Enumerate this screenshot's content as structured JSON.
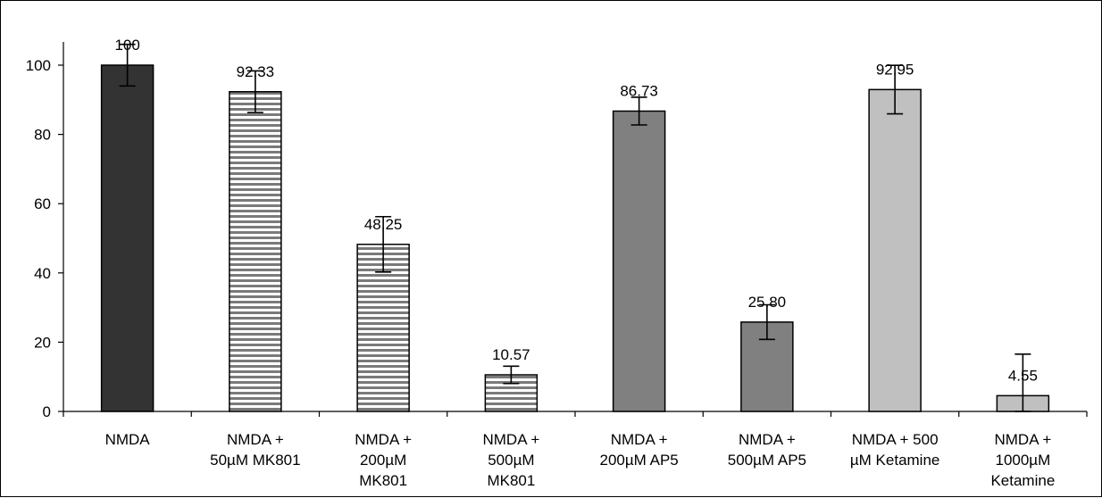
{
  "chart_data": {
    "type": "bar",
    "categories": [
      [
        "NMDA"
      ],
      [
        "NMDA +",
        "50µM MK801"
      ],
      [
        "NMDA +",
        "200µM",
        "MK801"
      ],
      [
        "NMDA +",
        "500µM",
        "MK801"
      ],
      [
        "NMDA +",
        "200µM AP5"
      ],
      [
        "NMDA +",
        "500µM AP5"
      ],
      [
        "NMDA + 500",
        "µM Ketamine"
      ],
      [
        "NMDA +",
        "1000µM",
        "Ketamine"
      ]
    ],
    "values": [
      100,
      92.33,
      48.25,
      10.57,
      86.73,
      25.8,
      92.95,
      4.55
    ],
    "data_labels": [
      "100",
      "92.33",
      "48.25",
      "10.57",
      "86.73",
      "25.80",
      "92.95",
      "4.55"
    ],
    "error": [
      6,
      6,
      8,
      2.5,
      4,
      5,
      7,
      12
    ],
    "colors": [
      "#333333",
      "#7f7f7f",
      "#7f7f7f",
      "#7f7f7f",
      "#808080",
      "#808080",
      "#c0c0c0",
      "#c0c0c0"
    ],
    "patterns": [
      "solid",
      "hstripe",
      "hstripe",
      "hstripe",
      "solid",
      "solid",
      "solid",
      "solid"
    ],
    "ylim": [
      0,
      100
    ],
    "yticks": [
      0,
      20,
      40,
      60,
      80,
      100
    ],
    "grid": false,
    "legend": "none",
    "title": "",
    "xlabel": "",
    "ylabel": ""
  }
}
